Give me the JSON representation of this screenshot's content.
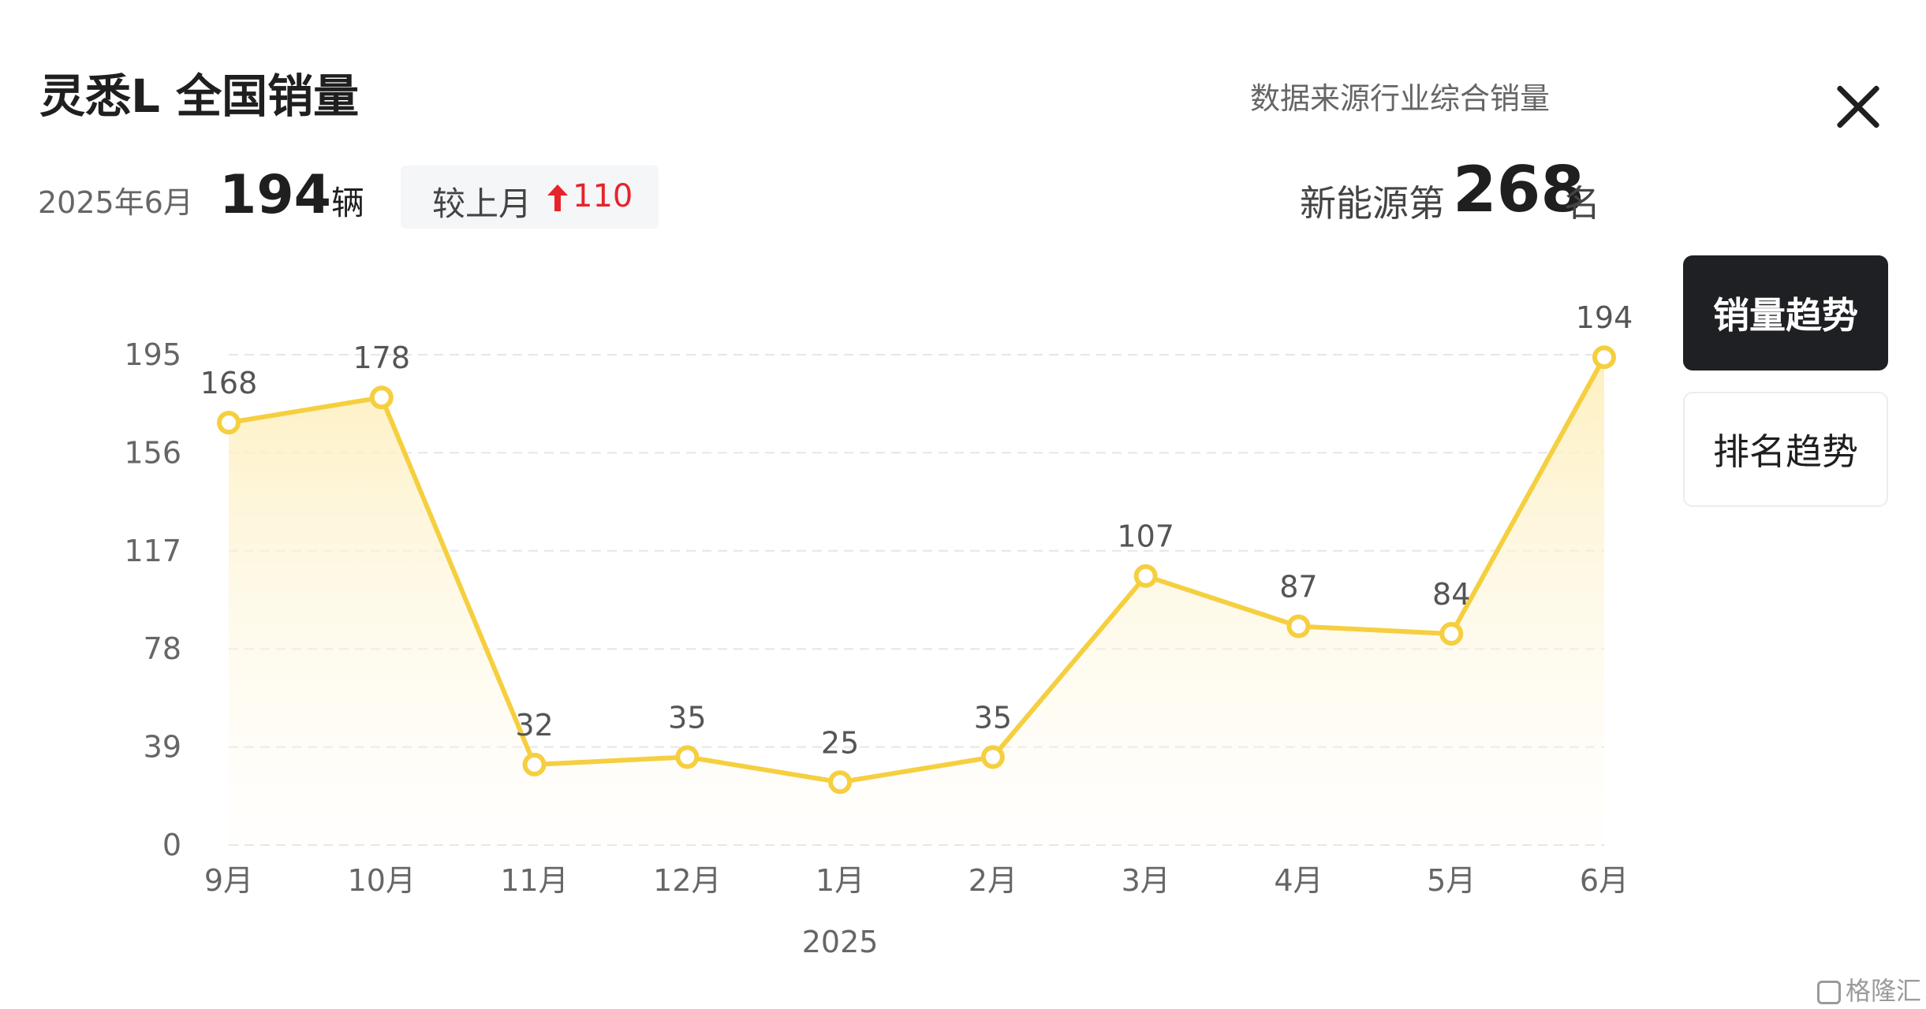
{
  "header": {
    "title": "灵悉L 全国销量",
    "source_text": "数据来源行业综合销量",
    "close_icon": "close-icon"
  },
  "summary": {
    "period": "2025年6月",
    "sales_value": "194",
    "unit": "辆",
    "change_label": "较上月",
    "change_icon": "arrow-up-icon",
    "change_value": "110",
    "rank_prefix": "新能源第",
    "rank_value": "268",
    "rank_suffix": "名"
  },
  "tabs": [
    {
      "label": "销量趋势",
      "active": true
    },
    {
      "label": "排名趋势",
      "active": false
    }
  ],
  "colors": {
    "line": "#f5cf3f",
    "area_top": "#fdeeb8",
    "up": "#e6242b",
    "active_tab": "#1f2024"
  },
  "watermark": "格隆汇",
  "chart_data": {
    "type": "area",
    "categories": [
      "9月",
      "10月",
      "11月",
      "12月",
      "1月",
      "2月",
      "3月",
      "4月",
      "5月",
      "6月"
    ],
    "values": [
      168,
      178,
      32,
      35,
      25,
      35,
      107,
      87,
      84,
      194
    ],
    "data_labels": [
      "168",
      "178",
      "32",
      "35",
      "25",
      "35",
      "107",
      "87",
      "84",
      "194"
    ],
    "year_label": "2025",
    "y_ticks": [
      0,
      39,
      78,
      117,
      156,
      195
    ],
    "y_tick_labels": [
      "0",
      "39",
      "78",
      "117",
      "156",
      "195"
    ],
    "ylim": [
      0,
      195
    ],
    "grid": true,
    "markers": "hollow-circle"
  }
}
